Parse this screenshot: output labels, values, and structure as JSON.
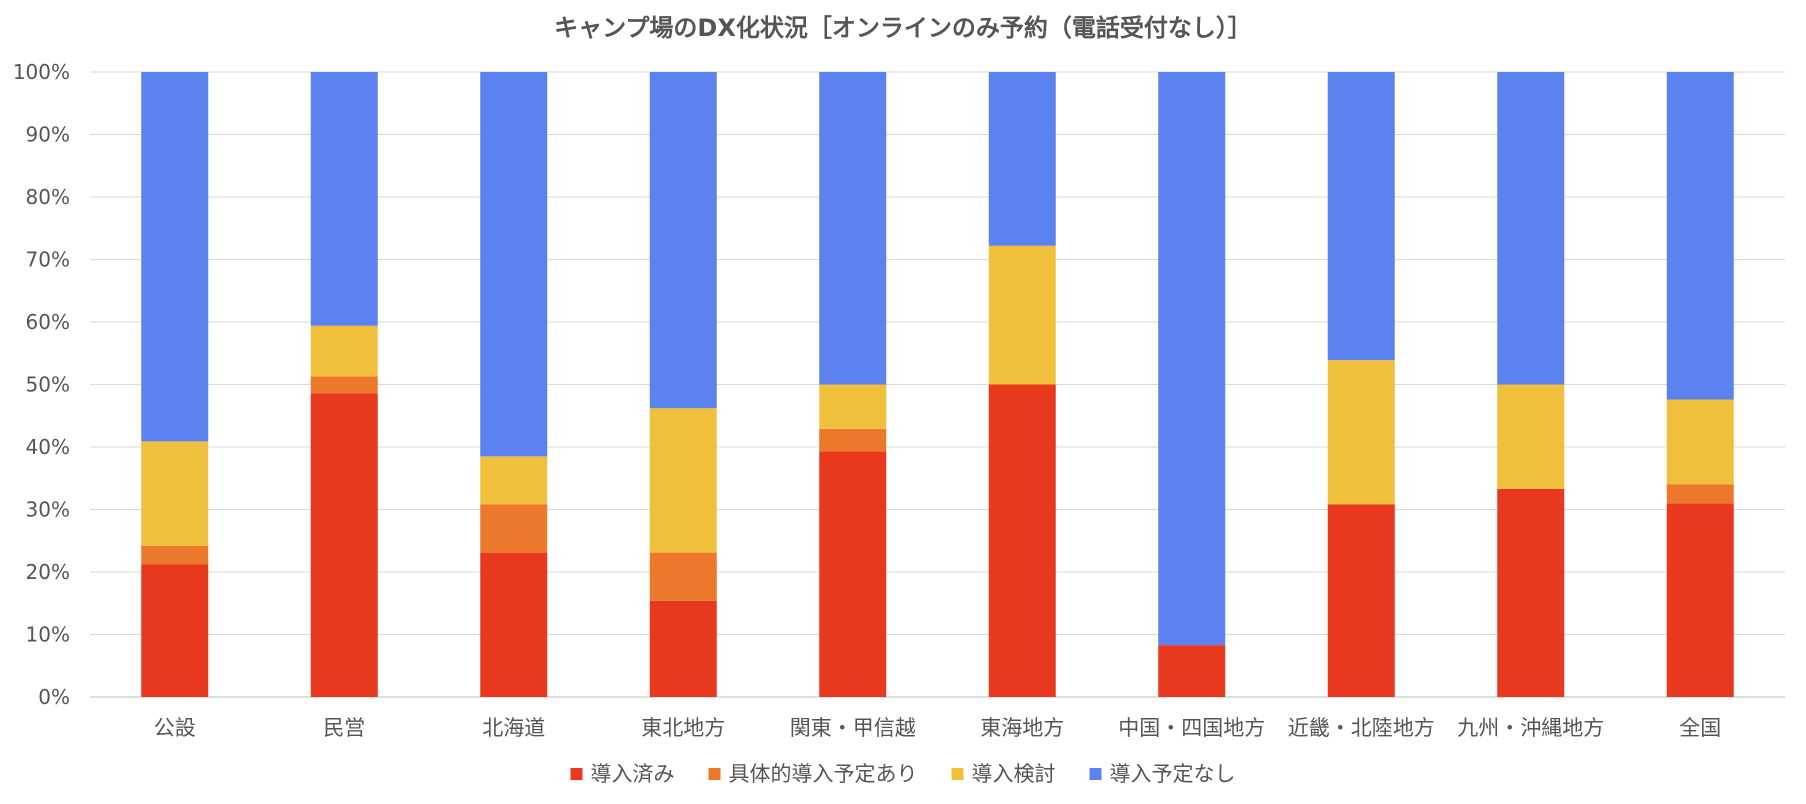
{
  "chart_data": {
    "type": "bar",
    "stacked": true,
    "title": "キャンプ場のDX化状況［オンラインのみ予約（電話受付なし）］",
    "xlabel": "",
    "ylabel": "",
    "ylim": [
      0,
      100
    ],
    "y_ticks": [
      "0%",
      "10%",
      "20%",
      "30%",
      "40%",
      "50%",
      "60%",
      "70%",
      "80%",
      "90%",
      "100%"
    ],
    "grid": true,
    "legend_position": "bottom",
    "categories": [
      "公設",
      "民営",
      "北海道",
      "東北地方",
      "関東・甲信越",
      "東海地方",
      "中国・四国地方",
      "近畿・北陸地方",
      "九州・沖縄地方",
      "全国"
    ],
    "series": [
      {
        "name": "導入済み",
        "color": "#E8391E",
        "values": [
          21.2,
          48.6,
          23.1,
          15.4,
          39.3,
          50.0,
          8.3,
          30.8,
          33.3,
          31.0
        ]
      },
      {
        "name": "具体的導入予定あり",
        "color": "#EB782B",
        "values": [
          3.0,
          2.7,
          7.7,
          7.7,
          3.6,
          0.0,
          0.0,
          0.0,
          0.0,
          3.0
        ]
      },
      {
        "name": "導入検討",
        "color": "#F0BF3C",
        "values": [
          16.7,
          8.1,
          7.7,
          23.1,
          7.1,
          22.2,
          0.0,
          23.1,
          16.7,
          13.6
        ]
      },
      {
        "name": "導入予定なし",
        "color": "#5B82EE",
        "values": [
          59.1,
          40.6,
          61.5,
          53.8,
          50.0,
          27.8,
          91.7,
          46.1,
          50.0,
          52.4
        ]
      }
    ]
  }
}
